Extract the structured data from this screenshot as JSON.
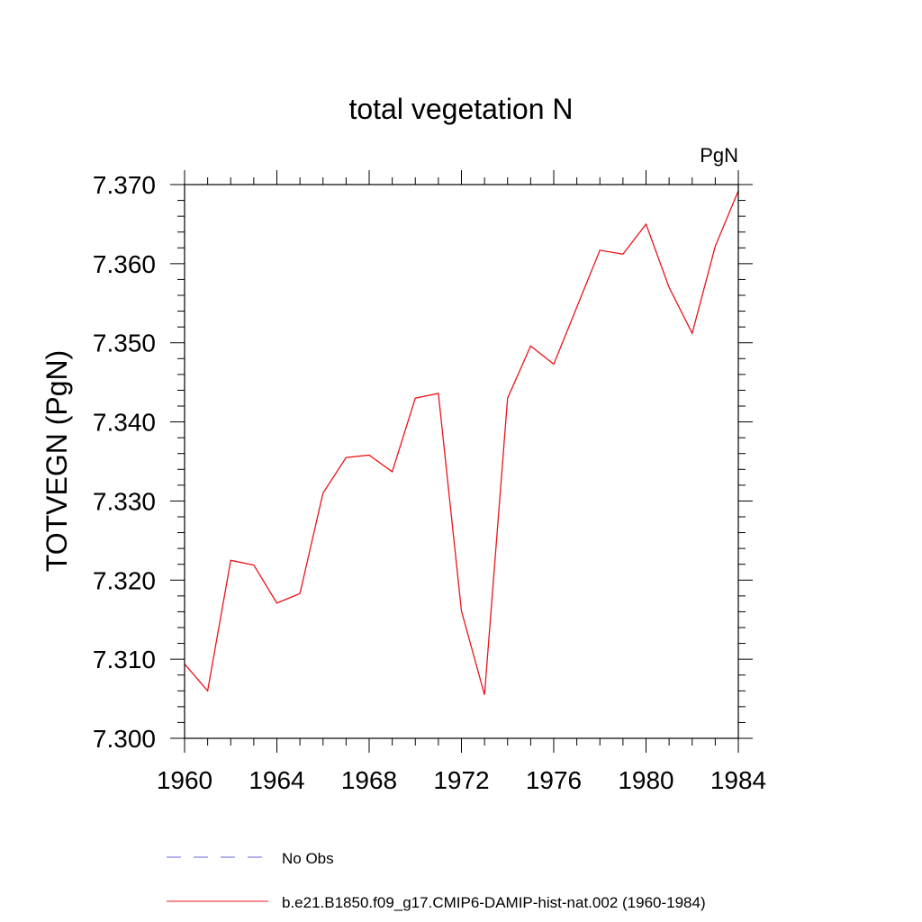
{
  "chart_data": {
    "type": "line",
    "title": "total vegetation N",
    "units_label": "PgN",
    "ylabel": "TOTVEGN  (PgN)",
    "xlabel": "",
    "xlim": [
      1960,
      1984
    ],
    "ylim": [
      7.3,
      7.37
    ],
    "x_ticks": [
      "1960",
      "1964",
      "1968",
      "1972",
      "1976",
      "1980",
      "1984"
    ],
    "y_ticks": [
      "7.300",
      "7.310",
      "7.320",
      "7.330",
      "7.340",
      "7.350",
      "7.360",
      "7.370"
    ],
    "x": [
      1960,
      1961,
      1962,
      1963,
      1964,
      1965,
      1966,
      1967,
      1968,
      1969,
      1970,
      1971,
      1972,
      1973,
      1974,
      1975,
      1976,
      1977,
      1978,
      1979,
      1980,
      1981,
      1982,
      1983,
      1984
    ],
    "series": [
      {
        "name": "b.e21.B1850.f09_g17.CMIP6-DAMIP-hist-nat.002 (1960-1984)",
        "color": "#e8141b",
        "style": "solid",
        "values": [
          7.3094,
          7.306,
          7.3225,
          7.3219,
          7.3171,
          7.3183,
          7.331,
          7.3355,
          7.3358,
          7.3337,
          7.343,
          7.3436,
          7.3161,
          7.3055,
          7.343,
          7.3496,
          7.3473,
          7.3545,
          7.3617,
          7.3612,
          7.365,
          7.357,
          7.3512,
          7.3622,
          7.3692
        ]
      }
    ],
    "legend": [
      {
        "label": "No Obs",
        "color": "#6a6ad8",
        "style": "dashed"
      },
      {
        "label": "b.e21.B1850.f09_g17.CMIP6-DAMIP-hist-nat.002 (1960-1984)",
        "color": "#e8141b",
        "style": "solid"
      }
    ],
    "legend_placement": "bottom",
    "grid": false
  }
}
